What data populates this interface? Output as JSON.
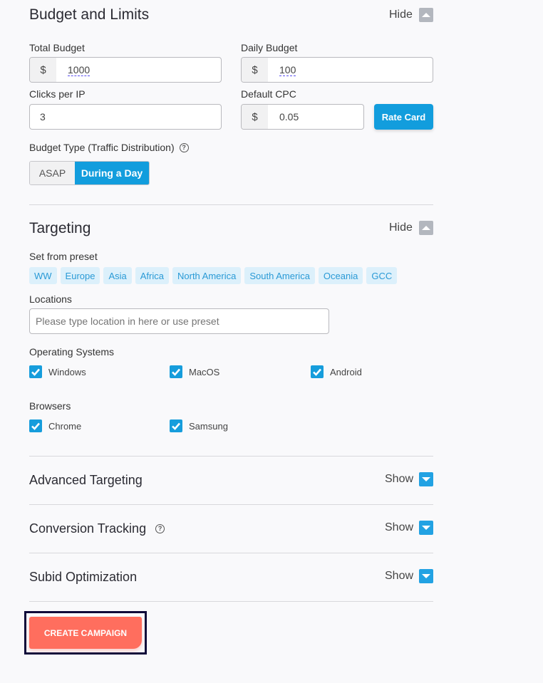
{
  "budget": {
    "title": "Budget and Limits",
    "toggle": "Hide",
    "total_budget_label": "Total Budget",
    "total_budget_prefix": "$",
    "total_budget_value": "1000",
    "daily_budget_label": "Daily Budget",
    "daily_budget_prefix": "$",
    "daily_budget_value": "100",
    "clicks_per_ip_label": "Clicks per IP",
    "clicks_per_ip_value": "3",
    "default_cpc_label": "Default CPC",
    "default_cpc_prefix": "$",
    "default_cpc_value": "0.05",
    "rate_card": "Rate Card",
    "budget_type_label": "Budget Type (Traffic Distribution)",
    "help": "?",
    "budget_type_options": [
      "ASAP",
      "During a Day"
    ],
    "budget_type_selected": "During a Day"
  },
  "targeting": {
    "title": "Targeting",
    "toggle": "Hide",
    "preset_label": "Set from preset",
    "presets": [
      "WW",
      "Europe",
      "Asia",
      "Africa",
      "North America",
      "South America",
      "Oceania",
      "GCC"
    ],
    "locations_label": "Locations",
    "locations_placeholder": "Please type location in here or use preset",
    "os_label": "Operating Systems",
    "os": [
      {
        "label": "Windows",
        "checked": true
      },
      {
        "label": "MacOS",
        "checked": true
      },
      {
        "label": "Android",
        "checked": true
      }
    ],
    "browsers_label": "Browsers",
    "browsers": [
      {
        "label": "Chrome",
        "checked": true
      },
      {
        "label": "Samsung",
        "checked": true
      }
    ]
  },
  "sections": [
    {
      "title": "Advanced Targeting",
      "toggle": "Show"
    },
    {
      "title": "Conversion Tracking",
      "toggle": "Show",
      "help": "?"
    },
    {
      "title": "Subid Optimization",
      "toggle": "Show"
    }
  ],
  "create_button": "CREATE CAMPAIGN",
  "colors": {
    "accent": "#129ddd",
    "create": "#ff6e5e",
    "chip_bg": "#dcf0fb"
  }
}
